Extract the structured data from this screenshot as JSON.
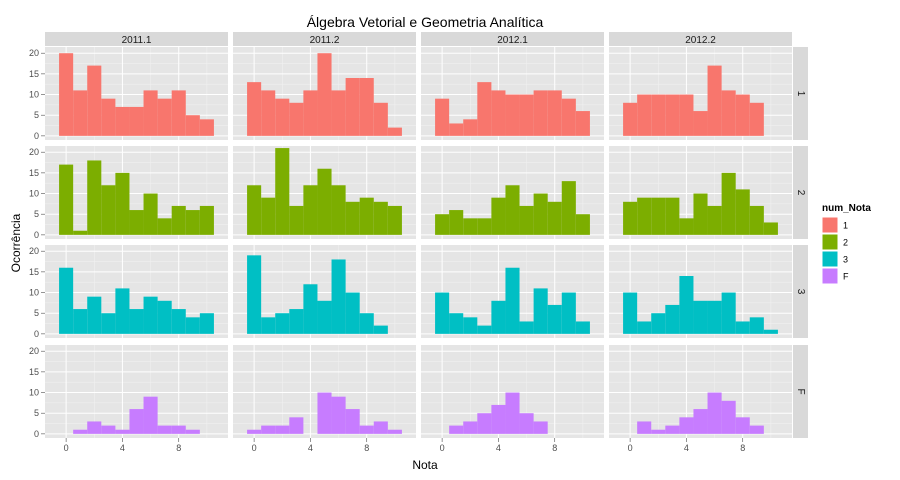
{
  "chart_data": {
    "type": "bar",
    "title": "Álgebra Vetorial e Geometria Analítica",
    "xlabel": "Nota",
    "ylabel": "Ocorrência",
    "xlim": [
      -1.5,
      11.5
    ],
    "ylim": [
      -1,
      21.5
    ],
    "x_ticks": [
      "0",
      "4",
      "8"
    ],
    "y_ticks": [
      "0",
      "5",
      "10",
      "15",
      "20"
    ],
    "grid": true,
    "bin_width": 1,
    "columns": [
      "2011.1",
      "2011.2",
      "2012.1",
      "2012.2"
    ],
    "rows": [
      "1",
      "2",
      "3",
      "F"
    ],
    "legend": {
      "title": "num_Nota",
      "position": "right",
      "entries": [
        {
          "label": "1",
          "color": "#F8766D"
        },
        {
          "label": "2",
          "color": "#7CAE00"
        },
        {
          "label": "3",
          "color": "#00BFC4"
        },
        {
          "label": "F",
          "color": "#C77CFF"
        }
      ]
    },
    "panels": [
      {
        "row": "1",
        "col": "2011.1",
        "bins": [
          0,
          1,
          2,
          3,
          4,
          5,
          6,
          7,
          8,
          9,
          10
        ],
        "values": [
          20,
          11,
          17,
          9,
          7,
          7,
          11,
          9,
          11,
          5,
          4
        ]
      },
      {
        "row": "1",
        "col": "2011.2",
        "bins": [
          0,
          1,
          2,
          3,
          4,
          5,
          6,
          7,
          8,
          9,
          10
        ],
        "values": [
          13,
          11,
          9,
          8,
          11,
          20,
          11,
          14,
          14,
          8,
          2
        ]
      },
      {
        "row": "1",
        "col": "2012.1",
        "bins": [
          0,
          1,
          2,
          3,
          4,
          5,
          6,
          7,
          8,
          9,
          10
        ],
        "values": [
          9,
          3,
          4,
          13,
          11,
          10,
          10,
          11,
          11,
          9,
          6
        ]
      },
      {
        "row": "1",
        "col": "2012.2",
        "bins": [
          0,
          1,
          2,
          3,
          4,
          5,
          6,
          7,
          8,
          9
        ],
        "values": [
          8,
          10,
          10,
          10,
          10,
          6,
          17,
          11,
          10,
          8
        ]
      },
      {
        "row": "2",
        "col": "2011.1",
        "bins": [
          0,
          1,
          2,
          3,
          4,
          5,
          6,
          7,
          8,
          9,
          10
        ],
        "values": [
          17,
          1,
          18,
          12,
          15,
          6,
          10,
          4,
          7,
          6,
          7
        ]
      },
      {
        "row": "2",
        "col": "2011.2",
        "bins": [
          0,
          1,
          2,
          3,
          4,
          5,
          6,
          7,
          8,
          9,
          10
        ],
        "values": [
          12,
          9,
          21,
          7,
          12,
          16,
          12,
          8,
          9,
          8,
          7
        ]
      },
      {
        "row": "2",
        "col": "2012.1",
        "bins": [
          0,
          1,
          2,
          3,
          4,
          5,
          6,
          7,
          8,
          9,
          10
        ],
        "values": [
          5,
          6,
          4,
          4,
          9,
          12,
          7,
          10,
          8,
          13,
          5
        ]
      },
      {
        "row": "2",
        "col": "2012.2",
        "bins": [
          0,
          1,
          2,
          3,
          4,
          5,
          6,
          7,
          8,
          9,
          10
        ],
        "values": [
          8,
          9,
          9,
          9,
          4,
          10,
          7,
          15,
          11,
          7,
          3
        ]
      },
      {
        "row": "3",
        "col": "2011.1",
        "bins": [
          0,
          1,
          2,
          3,
          4,
          5,
          6,
          7,
          8,
          9,
          10
        ],
        "values": [
          16,
          6,
          9,
          5,
          11,
          6,
          9,
          8,
          6,
          4,
          5
        ]
      },
      {
        "row": "3",
        "col": "2011.2",
        "bins": [
          0,
          1,
          2,
          3,
          4,
          5,
          6,
          7,
          8,
          9,
          10
        ],
        "values": [
          19,
          4,
          5,
          6,
          12,
          8,
          18,
          10,
          5,
          2,
          0
        ]
      },
      {
        "row": "3",
        "col": "2012.1",
        "bins": [
          0,
          1,
          2,
          3,
          4,
          5,
          6,
          7,
          8,
          9,
          10
        ],
        "values": [
          10,
          5,
          4,
          2,
          8,
          16,
          3,
          11,
          7,
          10,
          3
        ]
      },
      {
        "row": "3",
        "col": "2012.2",
        "bins": [
          0,
          1,
          2,
          3,
          4,
          5,
          6,
          7,
          8,
          9,
          10
        ],
        "values": [
          10,
          3,
          5,
          7,
          14,
          8,
          8,
          10,
          3,
          4,
          1
        ]
      },
      {
        "row": "F",
        "col": "2011.1",
        "bins": [
          1,
          2,
          3,
          4,
          5,
          6,
          7,
          8,
          9
        ],
        "values": [
          1,
          3,
          2,
          1,
          6,
          9,
          2,
          2,
          1
        ]
      },
      {
        "row": "F",
        "col": "2011.2",
        "bins": [
          0,
          1,
          2,
          3,
          4,
          5,
          6,
          7,
          8,
          9,
          10
        ],
        "values": [
          1,
          2,
          2,
          4,
          0,
          10,
          9,
          6,
          2,
          3,
          1
        ]
      },
      {
        "row": "F",
        "col": "2012.1",
        "bins": [
          1,
          2,
          3,
          4,
          5,
          6,
          7,
          8
        ],
        "values": [
          2,
          3,
          5,
          7,
          10,
          5,
          3,
          0
        ]
      },
      {
        "row": "F",
        "col": "2012.2",
        "bins": [
          1,
          2,
          3,
          4,
          5,
          6,
          7,
          8,
          9
        ],
        "values": [
          3,
          1,
          2,
          4,
          6,
          10,
          8,
          4,
          2
        ]
      }
    ]
  }
}
